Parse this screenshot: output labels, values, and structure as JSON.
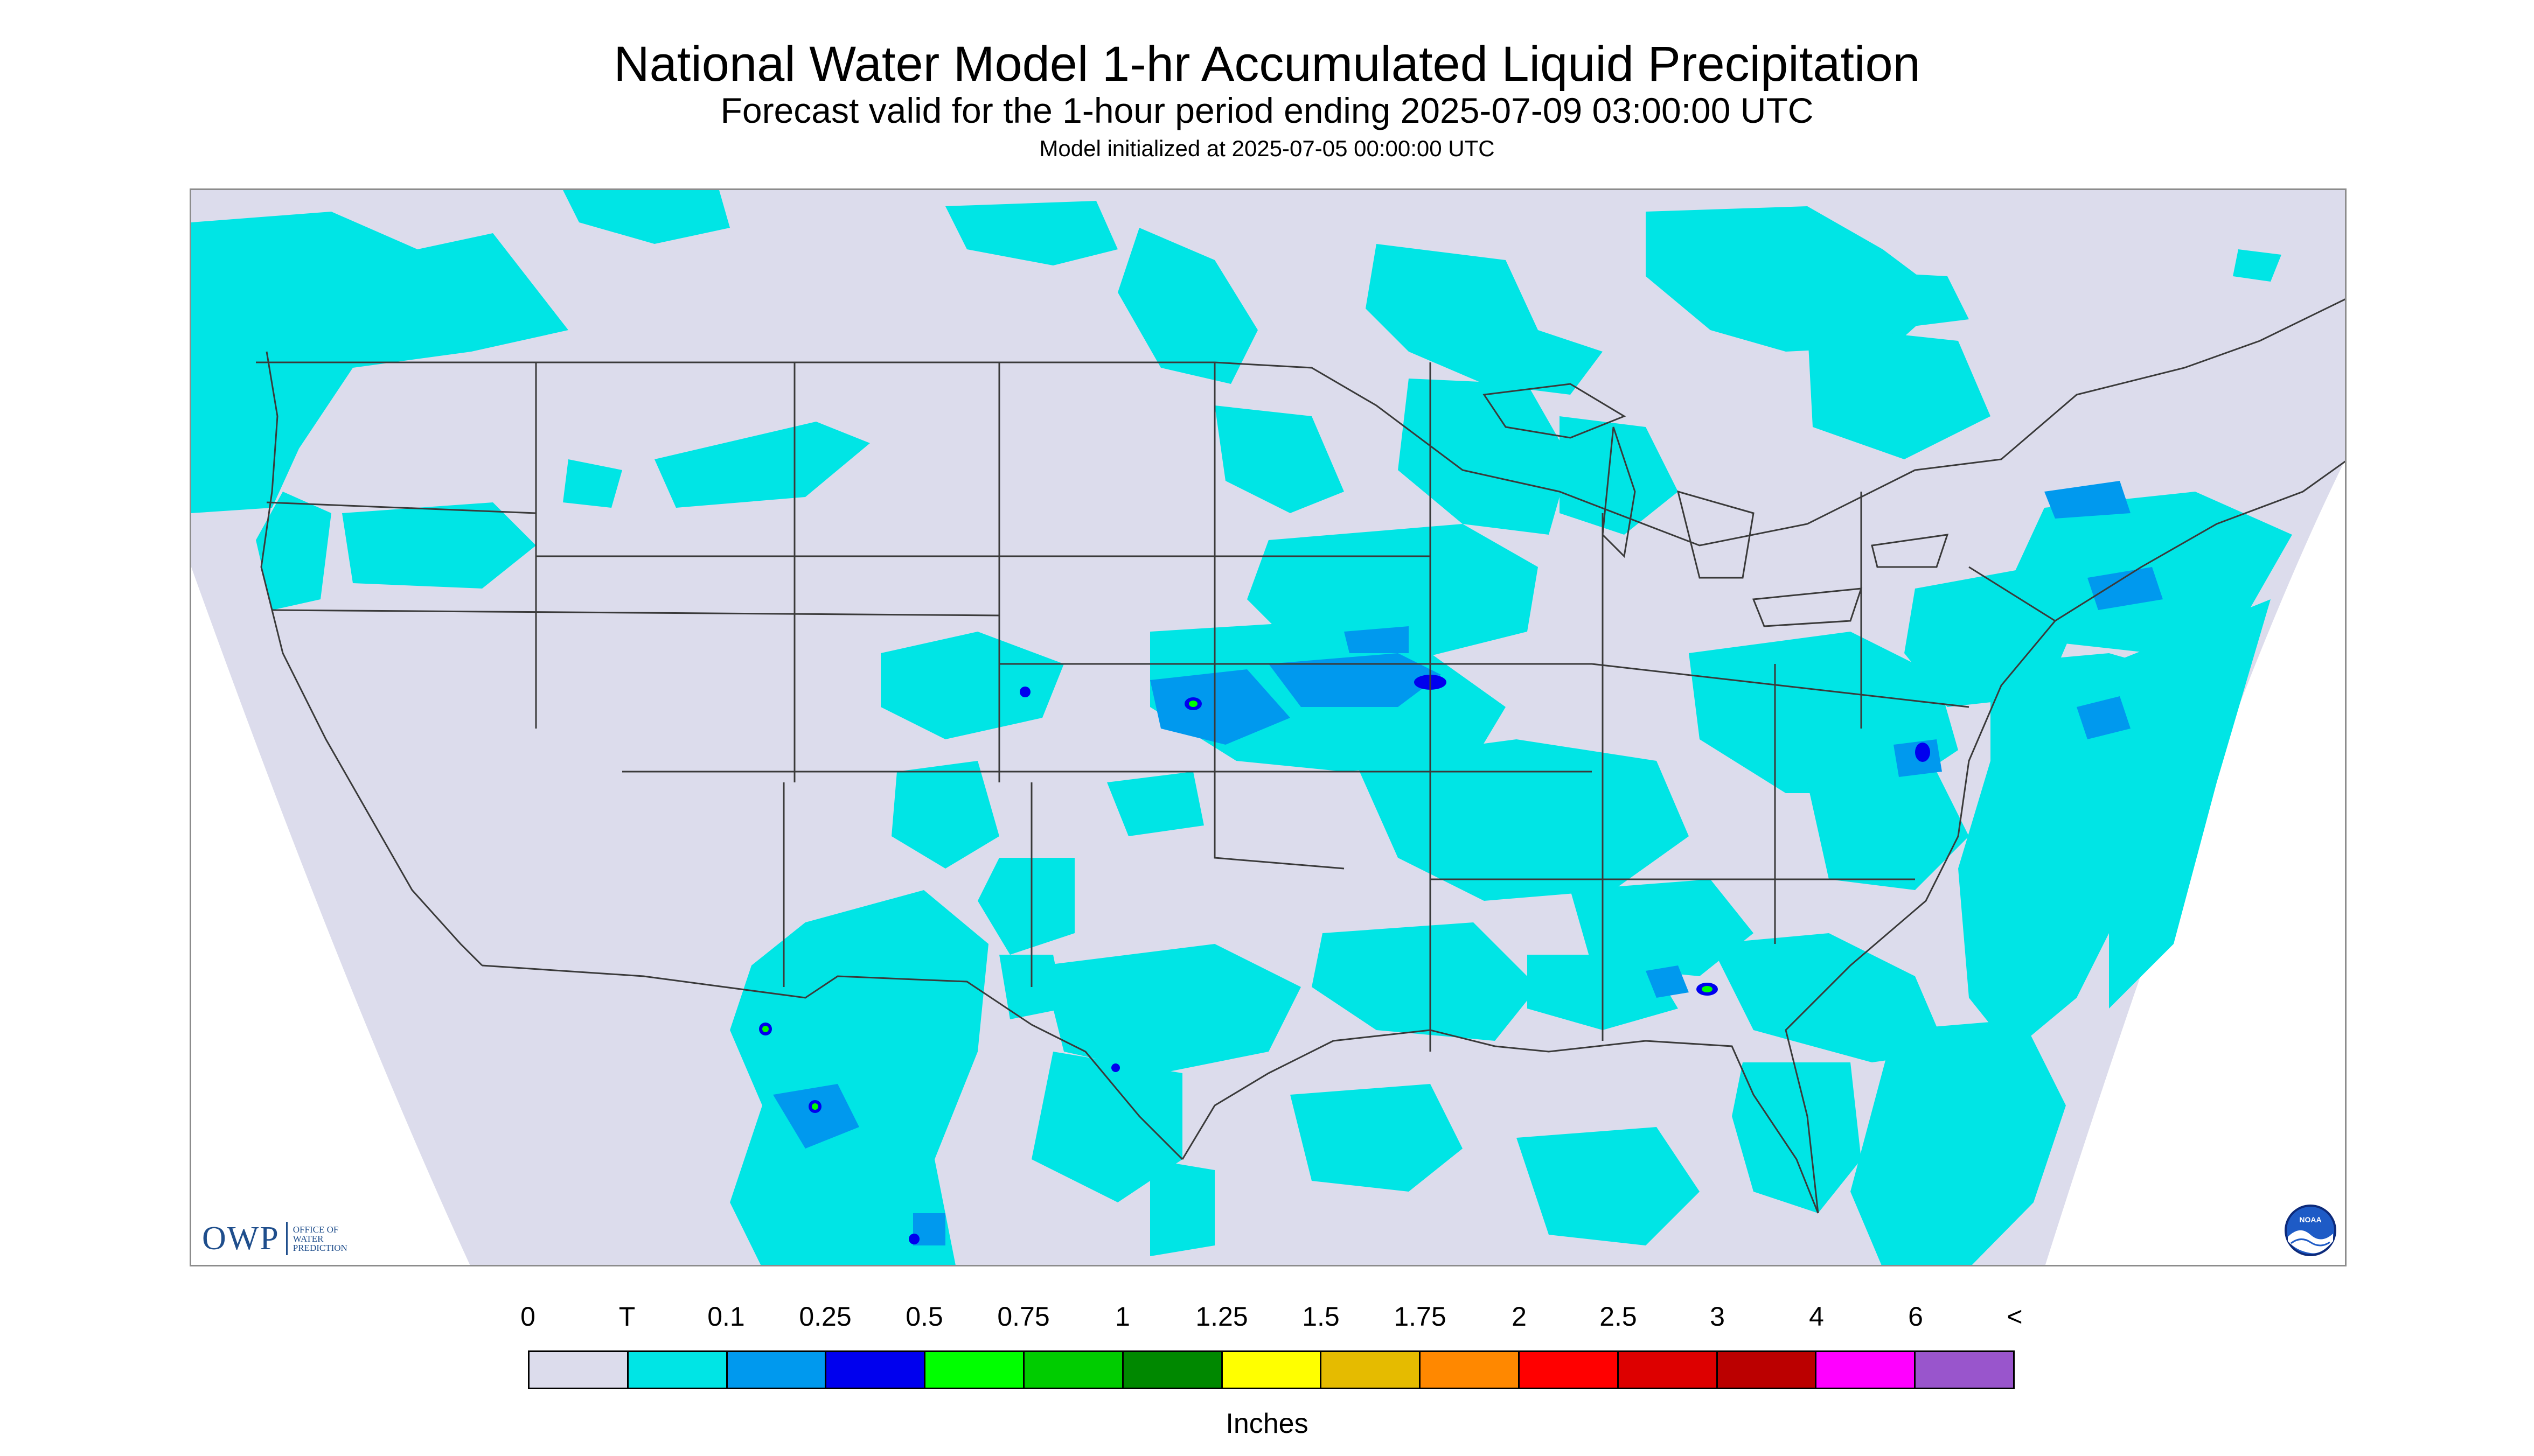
{
  "title": "National Water Model 1-hr Accumulated Liquid Precipitation",
  "subtitle": "Forecast valid for the 1-hour period ending 2025-07-09 03:00:00 UTC",
  "model_init": "Model initialized at 2025-07-05 00:00:00 UTC",
  "map": {
    "region": "Continental United States",
    "background_color": "#dcdcec",
    "outside_domain_color": "#ffffff",
    "boundary_color": "#3a3a3a"
  },
  "logos": {
    "owp": {
      "mark": "OWP",
      "text": "OFFICE OF\nWATER\nPREDICTION"
    },
    "noaa": {
      "text": "NOAA"
    }
  },
  "legend": {
    "units": "Inches",
    "labels": [
      "0",
      "T",
      "0.1",
      "0.25",
      "0.5",
      "0.75",
      "1",
      "1.25",
      "1.5",
      "1.75",
      "2",
      "2.5",
      "3",
      "4",
      "6",
      "<"
    ],
    "colors": [
      "#dcdcec",
      "#00e5e5",
      "#0099ee",
      "#0000ee",
      "#00ff00",
      "#00cc00",
      "#008800",
      "#ffff00",
      "#e5bb00",
      "#ff8800",
      "#ff0000",
      "#dd0000",
      "#bb0000",
      "#ff00ff",
      "#9955cc"
    ]
  }
}
